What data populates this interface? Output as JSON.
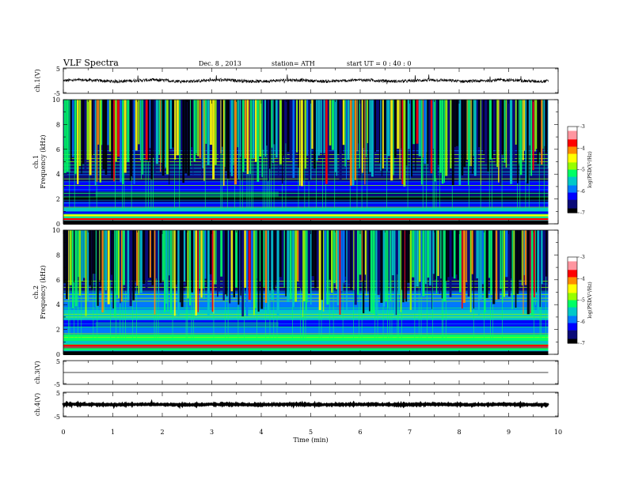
{
  "header": {
    "title": "VLF  Spectra",
    "date": "Dec. 8  , 2013",
    "station": "station= ATH",
    "start": "start  UT  =   0  : 40 : 0"
  },
  "colors": {
    "spectrogram_scale": [
      "#000000",
      "#0a0a78",
      "#0000ff",
      "#0078ff",
      "#00c8c8",
      "#00ff64",
      "#96ff00",
      "#ffff00",
      "#ff8c00",
      "#ff0000",
      "#ff96a0",
      "#ffe6ea"
    ]
  },
  "chart_data": [
    {
      "type": "line",
      "panel": "ch1-waveform",
      "ylabel": "ch.1(V)",
      "ylim": [
        -5,
        5
      ],
      "yticks": [
        "5",
        "-5"
      ],
      "xlim": [
        0,
        10
      ],
      "x_end": 9.8,
      "description_values": {
        "baseline": 0,
        "amplitude": 1
      }
    },
    {
      "type": "heatmap",
      "panel": "ch1-spectrogram",
      "ylabel": "ch.1\nFrequency  (kHz)",
      "ylabel_line1": "ch.1",
      "ylabel_line2": "Frequency  (kHz)",
      "ylim": [
        0,
        10
      ],
      "yticks": [
        "0",
        "2",
        "4",
        "6",
        "8",
        "10"
      ],
      "xlim": [
        0,
        10
      ],
      "x_end": 9.8,
      "transitions_min": [
        0.65,
        4.35
      ],
      "colorbar": {
        "label": "log(PSD(V²/Hz)",
        "range": [
          -7,
          -3
        ],
        "ticks": [
          "-3",
          "-4",
          "-5",
          "-6",
          "-7"
        ]
      }
    },
    {
      "type": "heatmap",
      "panel": "ch2-spectrogram",
      "ylabel_line1": "ch.2",
      "ylabel_line2": "Frequency  (kHz)",
      "ylim": [
        0,
        10
      ],
      "yticks": [
        "0",
        "2",
        "4",
        "6",
        "8",
        "10"
      ],
      "xlim": [
        0,
        10
      ],
      "x_end": 9.8,
      "transitions_min": [
        0.65,
        4.35
      ],
      "colorbar": {
        "label": "log(PSD(V²/Hz)",
        "range": [
          -7,
          -3
        ],
        "ticks": [
          "-3",
          "-4",
          "-5",
          "-6",
          "-7"
        ]
      }
    },
    {
      "type": "line",
      "panel": "ch3-waveform",
      "ylabel": "ch.3(V)",
      "ylim": [
        -5,
        5
      ],
      "yticks": [
        "5",
        "-5"
      ],
      "xlim": [
        0,
        10
      ],
      "x_end": 9.8,
      "description_values": {
        "baseline": 0,
        "amplitude": 0
      }
    },
    {
      "type": "line",
      "panel": "ch4-waveform",
      "ylabel": "ch.4(V)",
      "ylim": [
        -5,
        5
      ],
      "yticks": [
        "5",
        "-5"
      ],
      "xlim": [
        0,
        10
      ],
      "x_end": 9.8,
      "description_values": {
        "baseline": 0,
        "amplitude": 0.3
      }
    }
  ],
  "xaxis": {
    "label": "Time  (min)",
    "ticks": [
      "0",
      "1",
      "2",
      "3",
      "4",
      "5",
      "6",
      "7",
      "8",
      "9",
      "10"
    ]
  }
}
